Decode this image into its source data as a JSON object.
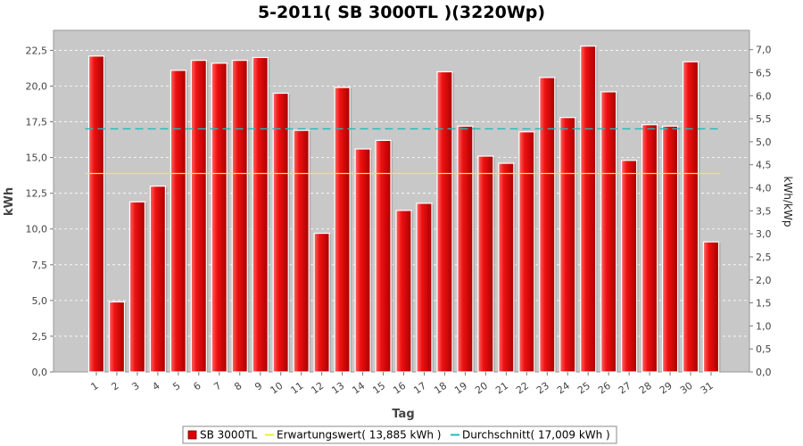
{
  "chart_data": {
    "type": "bar",
    "title": "5-2011( SB 3000TL )(3220Wp)",
    "xlabel": "Tag",
    "ylabel": "kWh",
    "y2label": "kWh/kWp",
    "categories": [
      "1",
      "2",
      "3",
      "4",
      "5",
      "6",
      "7",
      "8",
      "9",
      "10",
      "11",
      "12",
      "13",
      "14",
      "15",
      "16",
      "17",
      "18",
      "19",
      "20",
      "21",
      "22",
      "23",
      "24",
      "25",
      "26",
      "27",
      "28",
      "29",
      "30",
      "31"
    ],
    "series": [
      {
        "name": "SB 3000TL",
        "color": "#dd0000",
        "values": [
          22.1,
          4.9,
          11.9,
          13.0,
          21.1,
          21.8,
          21.6,
          21.8,
          22.0,
          19.5,
          16.9,
          9.7,
          19.9,
          15.6,
          16.2,
          11.3,
          11.8,
          21.0,
          17.2,
          15.1,
          14.6,
          16.8,
          20.6,
          17.8,
          22.8,
          19.6,
          14.8,
          17.3,
          17.2,
          21.7,
          9.1
        ]
      }
    ],
    "reference_lines": [
      {
        "name": "Erwartungswert",
        "value": 13.885,
        "color": "#eeee33",
        "dash": "solid"
      },
      {
        "name": "Durchschnitt",
        "value": 17.009,
        "color": "#22bbbb",
        "dash": "dashed"
      }
    ],
    "ylim": [
      0,
      23.9
    ],
    "yticks": [
      "0,0",
      "2,5",
      "5,0",
      "7,5",
      "10,0",
      "12,5",
      "15,0",
      "17,5",
      "20,0",
      "22,5"
    ],
    "ytick_values": [
      0,
      2.5,
      5,
      7.5,
      10,
      12.5,
      15,
      17.5,
      20,
      22.5
    ],
    "y2lim": [
      0,
      7.42
    ],
    "y2ticks": [
      "0,0",
      "0,5",
      "1,0",
      "1,5",
      "2,0",
      "2,5",
      "3,0",
      "3,5",
      "4,0",
      "4,5",
      "5,0",
      "5,5",
      "6,0",
      "6,5",
      "7,0"
    ],
    "y2tick_values": [
      0,
      0.5,
      1,
      1.5,
      2,
      2.5,
      3,
      3.5,
      4,
      4.5,
      5,
      5.5,
      6,
      6.5,
      7
    ],
    "grid": true,
    "legend_position": "bottom",
    "legend": [
      {
        "label": "SB 3000TL",
        "kind": "box",
        "color": "#dd0000"
      },
      {
        "label": "Erwartungswert( 13,885 kWh )",
        "kind": "line",
        "color": "#eeee33"
      },
      {
        "label": "Durchschnitt( 17,009 kWh )",
        "kind": "dash",
        "color": "#22bbbb"
      }
    ],
    "colors": {
      "plot_bg": "#c8c8c8",
      "grid": "#ffffff",
      "bar_highlight": "#ff5555",
      "bar_shadow": "#990000"
    }
  }
}
